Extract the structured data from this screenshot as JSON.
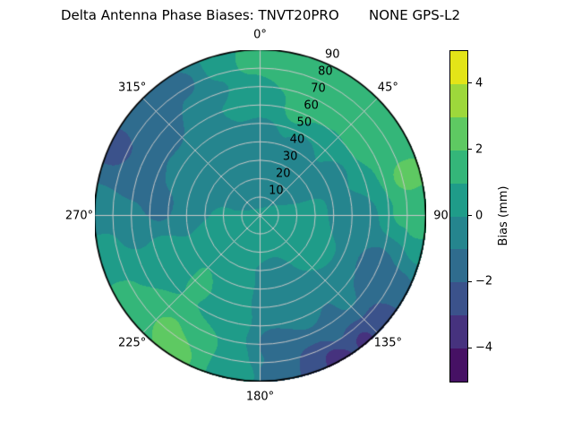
{
  "title": "Delta Antenna Phase Biases: TNVT20PRO       NONE GPS-L2",
  "chart_data": {
    "type": "heatmap",
    "projection": "polar",
    "title": "Delta Antenna Phase Biases: TNVT20PRO       NONE GPS-L2",
    "grid": true,
    "grid_color": "#c8c8c8",
    "outline_color": "#000000",
    "angular_ticks": [
      {
        "deg": 0,
        "label": "0°"
      },
      {
        "deg": 45,
        "label": "45°"
      },
      {
        "deg": 90,
        "label": "90"
      },
      {
        "deg": 135,
        "label": "135°"
      },
      {
        "deg": 180,
        "label": "180°"
      },
      {
        "deg": 225,
        "label": "225°"
      },
      {
        "deg": 270,
        "label": "270°"
      },
      {
        "deg": 315,
        "label": "315°"
      }
    ],
    "radial_ticks": [
      10,
      20,
      30,
      40,
      50,
      60,
      70,
      80,
      90
    ],
    "radial_label_angle_deg": 22.5,
    "radial_max": 90,
    "colorbar": {
      "label": "Bias (mm)",
      "min": -5,
      "max": 5,
      "ticks": [
        {
          "value": 4,
          "label": "4"
        },
        {
          "value": 2,
          "label": "2"
        },
        {
          "value": 0,
          "label": "0"
        },
        {
          "value": -2,
          "label": "−2"
        },
        {
          "value": -4,
          "label": "−4"
        }
      ],
      "band_colors_low_to_high": [
        "#461164",
        "#46327e",
        "#3b528b",
        "#2f6c8e",
        "#25858e",
        "#1f9c89",
        "#34b679",
        "#5ec962",
        "#9dd83b",
        "#e3e418"
      ]
    },
    "field_points_note": "sampled bias field control points [azimuth_deg, zenith_deg, bias_mm]",
    "field_points": [
      [
        0,
        22,
        -0.45
      ],
      [
        45,
        25,
        -0.4
      ],
      [
        315,
        25,
        -0.45
      ],
      [
        180,
        18,
        0.45
      ],
      [
        225,
        20,
        0.4
      ],
      [
        135,
        18,
        0.5
      ],
      [
        270,
        22,
        0.1
      ],
      [
        108,
        25,
        0.8
      ],
      [
        120,
        33,
        0.6
      ],
      [
        95,
        50,
        -0.7
      ],
      [
        112,
        68,
        -1.5
      ],
      [
        110,
        78,
        -1.0
      ],
      [
        0,
        45,
        -0.5
      ],
      [
        30,
        42,
        -0.3
      ],
      [
        60,
        45,
        -0.2
      ],
      [
        330,
        45,
        -0.8
      ],
      [
        300,
        45,
        -0.9
      ],
      [
        290,
        30,
        -0.5
      ],
      [
        270,
        40,
        -0.5
      ],
      [
        275,
        55,
        -1.5
      ],
      [
        288,
        70,
        -1.8
      ],
      [
        272,
        85,
        -0.8
      ],
      [
        262,
        70,
        -0.4
      ],
      [
        310,
        70,
        -1.4
      ],
      [
        318,
        85,
        -1.7
      ],
      [
        295,
        87,
        -2.4
      ],
      [
        330,
        82,
        -1.1
      ],
      [
        342,
        70,
        -0.2
      ],
      [
        345,
        86,
        0.4
      ],
      [
        355,
        85,
        1.3
      ],
      [
        5,
        86,
        1.5
      ],
      [
        350,
        65,
        0.6
      ],
      [
        0,
        65,
        0.8
      ],
      [
        20,
        60,
        1.2
      ],
      [
        30,
        72,
        1.8
      ],
      [
        45,
        80,
        1.7
      ],
      [
        15,
        80,
        1.5
      ],
      [
        40,
        60,
        1.0
      ],
      [
        55,
        70,
        1.5
      ],
      [
        62,
        86,
        1.7
      ],
      [
        75,
        84,
        2.5
      ],
      [
        83,
        88,
        1.9
      ],
      [
        90,
        78,
        1.1
      ],
      [
        95,
        87,
        1.3
      ],
      [
        103,
        87,
        0.3
      ],
      [
        90,
        55,
        -0.3
      ],
      [
        118,
        80,
        -1.6
      ],
      [
        130,
        86,
        -2.4
      ],
      [
        140,
        88,
        -3.1
      ],
      [
        152,
        89,
        -3.6
      ],
      [
        160,
        86,
        -2.6
      ],
      [
        170,
        84,
        -1.8
      ],
      [
        148,
        75,
        -1.9
      ],
      [
        135,
        65,
        -0.9
      ],
      [
        155,
        60,
        -0.8
      ],
      [
        175,
        70,
        -1.3
      ],
      [
        178,
        86,
        -1.2
      ],
      [
        172,
        45,
        -0.7
      ],
      [
        168,
        30,
        -0.4
      ],
      [
        185,
        87,
        0.3
      ],
      [
        192,
        80,
        0.8
      ],
      [
        195,
        60,
        0.4
      ],
      [
        200,
        42,
        0.6
      ],
      [
        212,
        86,
        2.8
      ],
      [
        220,
        80,
        2.4
      ],
      [
        205,
        75,
        1.4
      ],
      [
        228,
        88,
        1.8
      ],
      [
        232,
        75,
        1.5
      ],
      [
        240,
        85,
        1.2
      ],
      [
        250,
        82,
        0.9
      ],
      [
        258,
        85,
        0.2
      ],
      [
        222,
        47,
        1.7
      ],
      [
        210,
        40,
        0.3
      ],
      [
        235,
        48,
        0.5
      ],
      [
        222,
        30,
        0.3
      ],
      [
        230,
        65,
        1.0
      ],
      [
        250,
        55,
        0.2
      ],
      [
        250,
        30,
        0.3
      ],
      [
        240,
        65,
        0.6
      ]
    ]
  }
}
